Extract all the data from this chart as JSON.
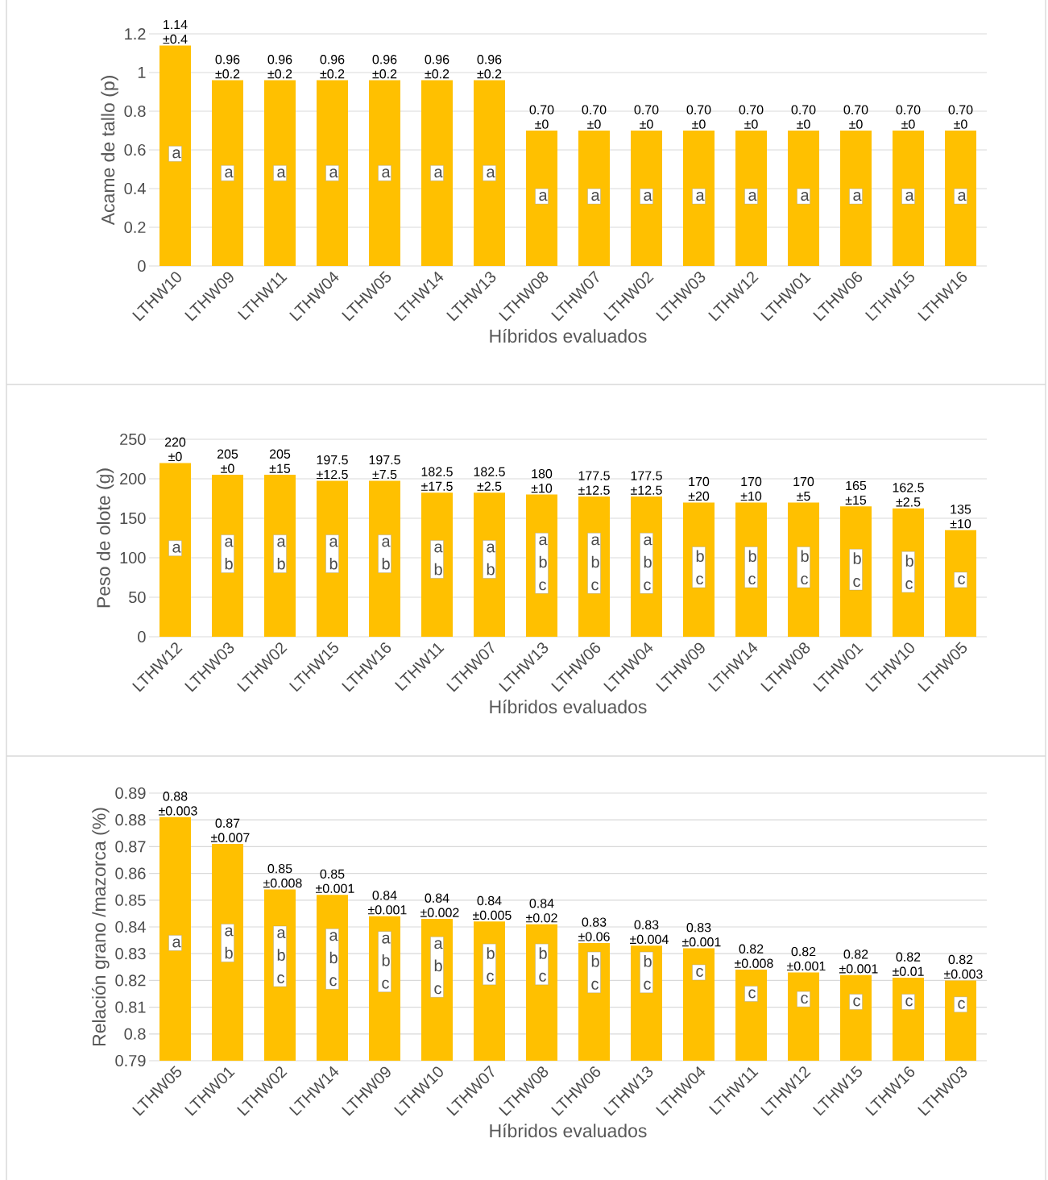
{
  "chart_data": [
    {
      "type": "bar",
      "categories": [
        "LTHW10",
        "LTHW09",
        "LTHW11",
        "LTHW04",
        "LTHW05",
        "LTHW14",
        "LTHW13",
        "LTHW08",
        "LTHW07",
        "LTHW02",
        "LTHW03",
        "LTHW12",
        "LTHW01",
        "LTHW06",
        "LTHW15",
        "LTHW16"
      ],
      "values": [
        1.14,
        0.96,
        0.96,
        0.96,
        0.96,
        0.96,
        0.96,
        0.7,
        0.7,
        0.7,
        0.7,
        0.7,
        0.7,
        0.7,
        0.7,
        0.7
      ],
      "value_labels": [
        "1.14 ±0.4",
        "0.96 ±0.2",
        "0.96 ±0.2",
        "0.96 ±0.2",
        "0.96 ±0.2",
        "0.96 ±0.2",
        "0.96 ±0.2",
        "0.70 ±0",
        "0.70 ±0",
        "0.70 ±0",
        "0.70 ±0",
        "0.70 ±0",
        "0.70 ±0",
        "0.70 ±0",
        "0.70 ±0",
        "0.70 ±0"
      ],
      "color": "#ffc000",
      "xlabel": "Híbridos evaluados",
      "ylabel": "Acame  de tallo (p)",
      "ylim": [
        0,
        1.2
      ],
      "yticks": [
        0,
        0.2,
        0.4,
        0.6,
        0.8,
        1,
        1.2
      ],
      "grid": "y",
      "annotations": [
        {
          "text": "a",
          "x": "LTHW10",
          "y": 0.58
        },
        {
          "text": "a",
          "x": "LTHW09",
          "y": 0.48
        },
        {
          "text": "a",
          "x": "LTHW11",
          "y": 0.48
        },
        {
          "text": "a",
          "x": "LTHW04",
          "y": 0.48
        },
        {
          "text": "a",
          "x": "LTHW05",
          "y": 0.48
        },
        {
          "text": "a",
          "x": "LTHW14",
          "y": 0.48
        },
        {
          "text": "a",
          "x": "LTHW13",
          "y": 0.48
        },
        {
          "text": "a",
          "x": "LTHW08",
          "y": 0.36
        },
        {
          "text": "a",
          "x": "LTHW07",
          "y": 0.36
        },
        {
          "text": "a",
          "x": "LTHW02",
          "y": 0.36
        },
        {
          "text": "a",
          "x": "LTHW03",
          "y": 0.36
        },
        {
          "text": "a",
          "x": "LTHW12",
          "y": 0.36
        },
        {
          "text": "a",
          "x": "LTHW01",
          "y": 0.36
        },
        {
          "text": "a",
          "x": "LTHW06",
          "y": 0.36
        },
        {
          "text": "a",
          "x": "LTHW15",
          "y": 0.36
        },
        {
          "text": "a",
          "x": "LTHW16",
          "y": 0.36
        }
      ]
    },
    {
      "type": "bar",
      "categories": [
        "LTHW12",
        "LTHW03",
        "LTHW02",
        "LTHW15",
        "LTHW16",
        "LTHW11",
        "LTHW07",
        "LTHW13",
        "LTHW06",
        "LTHW04",
        "LTHW09",
        "LTHW14",
        "LTHW08",
        "LTHW01",
        "LTHW10",
        "LTHW05"
      ],
      "values": [
        220,
        205,
        205,
        197.5,
        197.5,
        182.5,
        182.5,
        180,
        177.5,
        177.5,
        170,
        170,
        170,
        165,
        162.5,
        135
      ],
      "value_labels": [
        "220 ±0",
        "205 ±0",
        "205 ±15",
        "197.5 ±12.5",
        "197.5 ±7.5",
        "182.5 ±17.5",
        "182.5 ±2.5",
        "180 ±10",
        "177.5 ±12.5",
        "177.5 ±12.5",
        "170 ±20",
        "170 ±10",
        "170 ±5",
        "165 ±15",
        "162.5 ±2.5",
        "135 ±10"
      ],
      "color": "#ffc000",
      "xlabel": "Híbridos evaluados",
      "ylabel": "Peso de olote (g)",
      "ylim": [
        0,
        250
      ],
      "yticks": [
        0,
        50,
        100,
        150,
        200,
        250
      ],
      "grid": "y",
      "annotations": [
        {
          "text": "a",
          "x": "LTHW12",
          "y": 112
        },
        {
          "text": "a b",
          "x": "LTHW03",
          "y": 105
        },
        {
          "text": "a b",
          "x": "LTHW02",
          "y": 105
        },
        {
          "text": "a b",
          "x": "LTHW15",
          "y": 105
        },
        {
          "text": "a b",
          "x": "LTHW16",
          "y": 105
        },
        {
          "text": "a b",
          "x": "LTHW11",
          "y": 98
        },
        {
          "text": "a b",
          "x": "LTHW07",
          "y": 98
        },
        {
          "text": "a b c",
          "x": "LTHW13",
          "y": 93
        },
        {
          "text": "a b c",
          "x": "LTHW06",
          "y": 93
        },
        {
          "text": "a b c",
          "x": "LTHW04",
          "y": 93
        },
        {
          "text": "b c",
          "x": "LTHW09",
          "y": 88
        },
        {
          "text": "b c",
          "x": "LTHW14",
          "y": 88
        },
        {
          "text": "b c",
          "x": "LTHW08",
          "y": 88
        },
        {
          "text": "b c",
          "x": "LTHW01",
          "y": 85
        },
        {
          "text": "b c",
          "x": "LTHW10",
          "y": 82
        },
        {
          "text": "c",
          "x": "LTHW05",
          "y": 72
        }
      ]
    },
    {
      "type": "bar",
      "categories": [
        "LTHW05",
        "LTHW01",
        "LTHW02",
        "LTHW14",
        "LTHW09",
        "LTHW10",
        "LTHW07",
        "LTHW08",
        "LTHW06",
        "LTHW13",
        "LTHW04",
        "LTHW11",
        "LTHW12",
        "LTHW15",
        "LTHW16",
        "LTHW03"
      ],
      "values": [
        0.881,
        0.871,
        0.854,
        0.852,
        0.844,
        0.843,
        0.842,
        0.841,
        0.834,
        0.833,
        0.832,
        0.824,
        0.823,
        0.822,
        0.821,
        0.82
      ],
      "value_labels": [
        "0.88 ±0.003",
        "0.87 ±0.007",
        "0.85 ±0.008",
        "0.85 ±0.001",
        "0.84 ±0.001",
        "0.84 ±0.002",
        "0.84 ±0.005",
        "0.84 ±0.02",
        "0.83 ±0.06",
        "0.83 ±0.004",
        "0.83 ±0.001",
        "0.82 ±0.008",
        "0.82 ±0.001",
        "0.82 ±0.001",
        "0.82 ±0.01",
        "0.82 ±0.003"
      ],
      "color": "#ffc000",
      "xlabel": "Híbridos evaluados",
      "ylabel": "Relación grano /mazorca (%)",
      "ylim": [
        0.79,
        0.89
      ],
      "yticks": [
        0.79,
        0.8,
        0.81,
        0.82,
        0.83,
        0.84,
        0.85,
        0.86,
        0.87,
        0.88,
        0.89
      ],
      "grid": "y",
      "annotations": [
        {
          "text": "a",
          "x": "LTHW05",
          "y": 0.834
        },
        {
          "text": "a b",
          "x": "LTHW01",
          "y": 0.834
        },
        {
          "text": "a b c",
          "x": "LTHW02",
          "y": 0.829
        },
        {
          "text": "a b c",
          "x": "LTHW14",
          "y": 0.828
        },
        {
          "text": "a b c",
          "x": "LTHW09",
          "y": 0.827
        },
        {
          "text": "a b c",
          "x": "LTHW10",
          "y": 0.825
        },
        {
          "text": "b c",
          "x": "LTHW07",
          "y": 0.826
        },
        {
          "text": "b c",
          "x": "LTHW08",
          "y": 0.826
        },
        {
          "text": "b c",
          "x": "LTHW06",
          "y": 0.823
        },
        {
          "text": "b c",
          "x": "LTHW13",
          "y": 0.823
        },
        {
          "text": "c",
          "x": "LTHW04",
          "y": 0.823
        },
        {
          "text": "c",
          "x": "LTHW11",
          "y": 0.815
        },
        {
          "text": "c",
          "x": "LTHW12",
          "y": 0.813
        },
        {
          "text": "c",
          "x": "LTHW15",
          "y": 0.812
        },
        {
          "text": "c",
          "x": "LTHW16",
          "y": 0.812
        },
        {
          "text": "c",
          "x": "LTHW03",
          "y": 0.811
        }
      ]
    }
  ]
}
